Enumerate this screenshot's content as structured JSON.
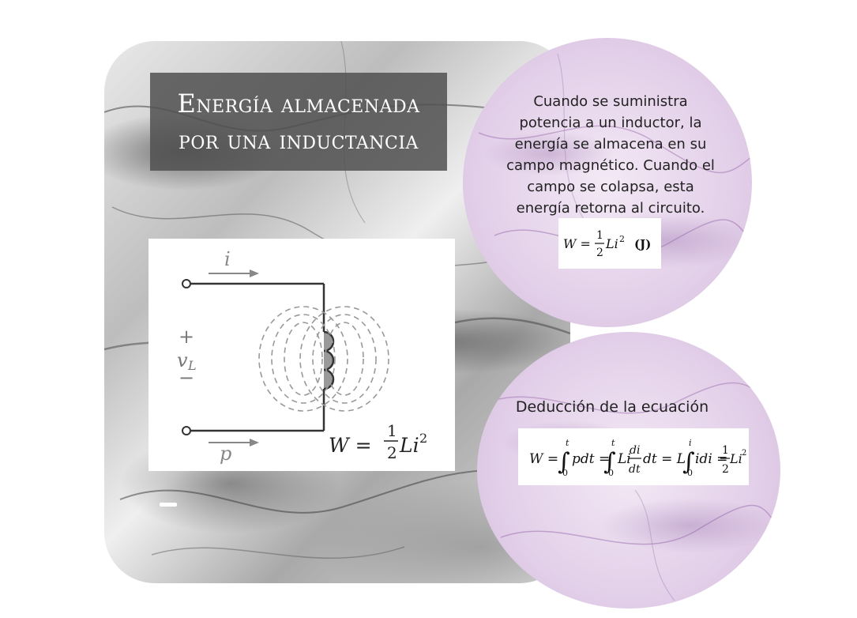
{
  "title": {
    "line1": "Energía almacenada",
    "line2": "por una inductancia"
  },
  "description": "Cuando se suministra potencia a un inductor, la energía se almacena en su campo magnético. Cuando el campo se colapsa, esta energía retorna al circuito.",
  "formula_energy": {
    "lhs": "W =",
    "num": "1",
    "den": "2",
    "body": "Li",
    "exp": "2",
    "unit": "(J)"
  },
  "circuit": {
    "current_label": "i",
    "plus": "+",
    "voltage_label": "v",
    "voltage_sub": "L",
    "minus": "−",
    "power_label": "p",
    "formula_lhs": "W =",
    "formula_num": "1",
    "formula_den": "2",
    "formula_body": "Li",
    "formula_exp": "2"
  },
  "deduction": {
    "title": "Deducción de la ecuación",
    "w_eq": "W =",
    "int1_upper": "t",
    "int1_lower": "0",
    "int1_body": "pdt =",
    "int2_upper": "t",
    "int2_lower": "0",
    "int2_body": "Li",
    "frac_num": "di",
    "frac_den": "dt",
    "int2_tail": "dt = L",
    "int3_upper": "i",
    "int3_lower": "0",
    "int3_body": "idi =",
    "half_num": "1",
    "half_den": "2",
    "result": "Li",
    "result_exp": "2"
  },
  "colors": {
    "title_bg": "#505050",
    "circle_tint": "#e3d0e9",
    "text": "#222222"
  }
}
